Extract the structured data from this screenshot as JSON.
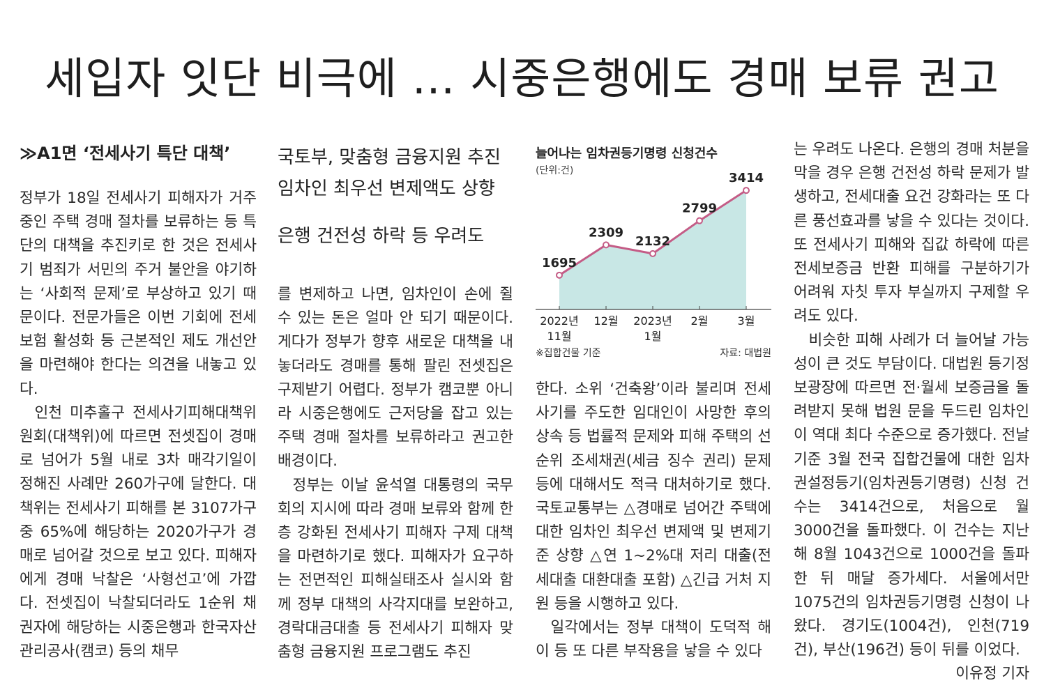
{
  "headline": "세입자 잇단 비극에 … 시중은행에도 경매 보류 권고",
  "kicker": "≫A1면 ‘전세사기 특단 대책’",
  "subheads": [
    "국토부, 맞춤형 금융지원 추진",
    "임차인 최우선 변제액도 상향",
    "은행 건전성 하락 등 우려도"
  ],
  "col1": [
    "정부가 18일 전세사기 피해자가 거주 중인 주택 경매 절차를 보류하는 등 특단의 대책을 추진키로 한 것은 전세사기 범죄가 서민의 주거 불안을 야기하는 ‘사회적 문제’로 부상하고 있기 때문이다. 전문가들은 이번 기회에 전세보험 활성화 등 근본적인 제도 개선안을 마련해야 한다는 의견을 내놓고 있다.",
    "인천 미추홀구 전세사기피해대책위원회(대책위)에 따르면 전셋집이 경매로 넘어가 5월 내로 3차 매각기일이 정해진 사례만 260가구에 달한다. 대책위는 전세사기 피해를 본 3107가구 중 65%에 해당하는 2020가구가 경매로 넘어갈 것으로 보고 있다. 피해자에게 경매 낙찰은 ‘사형선고’에 가깝다. 전셋집이 낙찰되더라도 1순위 채권자에 해당하는 시중은행과 한국자산관리공사(캠코) 등의 채무"
  ],
  "col2": [
    "를 변제하고 나면, 임차인이 손에 쥘 수 있는 돈은 얼마 안 되기 때문이다. 게다가 정부가 향후 새로운 대책을 내놓더라도 경매를 통해 팔린 전셋집은 구제받기 어렵다. 정부가 캠코뿐 아니라 시중은행에도 근저당을 잡고 있는 주택 경매 절차를 보류하라고 권고한 배경이다.",
    "정부는 이날 윤석열 대통령의 국무회의 지시에 따라 경매 보류와 함께 한층 강화된 전세사기 피해자 구제 대책을 마련하기로 했다. 피해자가 요구하는 전면적인 피해실태조사 실시와 함께 정부 대책의 사각지대를 보완하고, 경락대금대출 등 전세사기 피해자 맞춤형 금융지원 프로그램도 추진"
  ],
  "col3": [
    "한다. 소위 ‘건축왕’이라 불리며 전세사기를 주도한 임대인이 사망한 후의 상속 등 법률적 문제와 피해 주택의 선순위 조세채권(세금 징수 권리) 문제 등에 대해서도 적극 대처하기로 했다. 국토교통부는 △경매로 넘어간 주택에 대한 임차인 최우선 변제액 및 변제기준 상향 △연 1~2%대 저리 대출(전세대출 대환대출 포함) △긴급 거처 지원 등을 시행하고 있다.",
    "일각에서는 정부 대책이 도덕적 해이 등 또 다른 부작용을 낳을 수 있다"
  ],
  "col4": [
    "는 우려도 나온다. 은행의 경매 처분을 막을 경우 은행 건전성 하락 문제가 발생하고, 전세대출 요건 강화라는 또 다른 풍선효과를 낳을 수 있다는 것이다. 또 전세사기 피해와 집값 하락에 따른 전세보증금 반환 피해를 구분하기가 어려워 자칫 투자 부실까지 구제할 우려도 있다.",
    "비슷한 피해 사례가 더 늘어날 가능성이 큰 것도 부담이다. 대법원 등기정보광장에 따르면 전·월세 보증금을 돌려받지 못해 법원 문을 두드린 임차인이 역대 최다 수준으로 증가했다. 전날 기준 3월 전국 집합건물에 대한 임차권설정등기(임차권등기명령) 신청 건수는 3414건으로, 처음으로 월 3000건을 돌파했다. 이 건수는 지난해 8월 1043건으로 1000건을 돌파한 뒤 매달 증가세다. 서울에서만 1075건의 임차권등기명령 신청이 나왔다. 경기도(1004건), 인천(719건), 부산(196건) 등이 뒤를 이었다."
  ],
  "byline": "이유정 기자",
  "chart": {
    "title": "늘어나는 임차권등기명령 신청건수",
    "unit": "(단위:건)",
    "note": "※집합건물 기준",
    "source": "자료: 대법원",
    "line_color": "#c45c86",
    "fill_color": "#c8e7e5"
  },
  "chart_data": {
    "type": "area",
    "title": "늘어나는 임차권등기명령 신청건수",
    "categories": [
      "2022년 11월",
      "12월",
      "2023년 1월",
      "2월",
      "3월"
    ],
    "tick_lines": [
      [
        "2022년",
        "11월"
      ],
      [
        "12월"
      ],
      [
        "2023년",
        "1월"
      ],
      [
        "2월"
      ],
      [
        "3월"
      ]
    ],
    "values": [
      1695,
      2309,
      2132,
      2799,
      3414
    ],
    "labels": [
      "1695",
      "2309",
      "2132",
      "2799",
      "3414"
    ],
    "ylim": [
      1000,
      3500
    ],
    "grid": false
  }
}
